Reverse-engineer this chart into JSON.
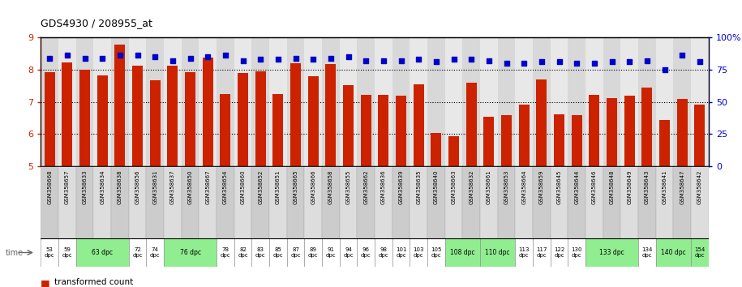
{
  "title": "GDS4930 / 208955_at",
  "samples": [
    "GSM358668",
    "GSM358657",
    "GSM358633",
    "GSM358634",
    "GSM358638",
    "GSM358656",
    "GSM358631",
    "GSM358637",
    "GSM358650",
    "GSM358667",
    "GSM358654",
    "GSM358660",
    "GSM358652",
    "GSM358651",
    "GSM358665",
    "GSM358666",
    "GSM358658",
    "GSM358655",
    "GSM358662",
    "GSM358636",
    "GSM358639",
    "GSM358635",
    "GSM358640",
    "GSM358663",
    "GSM358632",
    "GSM358661",
    "GSM358653",
    "GSM358664",
    "GSM358659",
    "GSM358645",
    "GSM358644",
    "GSM358646",
    "GSM358648",
    "GSM358649",
    "GSM358643",
    "GSM358641",
    "GSM358647",
    "GSM358642"
  ],
  "bar_values": [
    7.92,
    8.22,
    8.0,
    7.82,
    8.78,
    8.12,
    7.66,
    8.12,
    7.92,
    8.38,
    7.25,
    7.9,
    7.95,
    7.25,
    8.2,
    7.8,
    8.18,
    7.52,
    7.22,
    7.22,
    7.2,
    7.55,
    6.05,
    5.93,
    7.6,
    6.55,
    6.58,
    6.92,
    7.7,
    6.62,
    6.58,
    7.22,
    7.12,
    7.2,
    7.45,
    6.45,
    7.08,
    6.92
  ],
  "percentile_values": [
    84,
    86,
    84,
    84,
    86,
    86,
    85,
    82,
    84,
    85,
    86,
    82,
    83,
    83,
    84,
    83,
    84,
    85,
    82,
    82,
    82,
    83,
    81,
    83,
    83,
    82,
    80,
    80,
    81,
    81,
    80,
    80,
    81,
    81,
    82,
    75,
    86,
    81
  ],
  "ylim": [
    5,
    9
  ],
  "yticks": [
    5,
    6,
    7,
    8,
    9
  ],
  "y2lim": [
    0,
    100
  ],
  "y2ticks": [
    0,
    25,
    50,
    75,
    100
  ],
  "bar_color": "#cc2200",
  "dot_color": "#0000cc",
  "grid_color": "#000000",
  "groups": [
    {
      "indices": [
        0
      ],
      "label": "53\ndpc",
      "green": false
    },
    {
      "indices": [
        1
      ],
      "label": "59\ndpc",
      "green": false
    },
    {
      "indices": [
        2,
        3,
        4
      ],
      "label": "63 dpc",
      "green": true
    },
    {
      "indices": [
        5
      ],
      "label": "72\ndpc",
      "green": false
    },
    {
      "indices": [
        6
      ],
      "label": "74\ndpc",
      "green": false
    },
    {
      "indices": [
        7,
        8,
        9
      ],
      "label": "76 dpc",
      "green": true
    },
    {
      "indices": [
        10
      ],
      "label": "78\ndpc",
      "green": false
    },
    {
      "indices": [
        11
      ],
      "label": "82\ndpc",
      "green": false
    },
    {
      "indices": [
        12
      ],
      "label": "83\ndpc",
      "green": false
    },
    {
      "indices": [
        13
      ],
      "label": "85\ndpc",
      "green": false
    },
    {
      "indices": [
        14
      ],
      "label": "87\ndpc",
      "green": false
    },
    {
      "indices": [
        15
      ],
      "label": "89\ndpc",
      "green": false
    },
    {
      "indices": [
        16
      ],
      "label": "91\ndpc",
      "green": false
    },
    {
      "indices": [
        17
      ],
      "label": "94\ndpc",
      "green": false
    },
    {
      "indices": [
        18
      ],
      "label": "96\ndpc",
      "green": false
    },
    {
      "indices": [
        19
      ],
      "label": "98\ndpc",
      "green": false
    },
    {
      "indices": [
        20
      ],
      "label": "101\ndpc",
      "green": false
    },
    {
      "indices": [
        21
      ],
      "label": "103\ndpc",
      "green": false
    },
    {
      "indices": [
        22
      ],
      "label": "105\ndpc",
      "green": false
    },
    {
      "indices": [
        23,
        24
      ],
      "label": "108 dpc",
      "green": true
    },
    {
      "indices": [
        25,
        26
      ],
      "label": "110 dpc",
      "green": true
    },
    {
      "indices": [
        27
      ],
      "label": "113\ndpc",
      "green": false
    },
    {
      "indices": [
        28
      ],
      "label": "117\ndpc",
      "green": false
    },
    {
      "indices": [
        29
      ],
      "label": "122\ndpc",
      "green": false
    },
    {
      "indices": [
        30
      ],
      "label": "130\ndpc",
      "green": false
    },
    {
      "indices": [
        31,
        32,
        33
      ],
      "label": "133 dpc",
      "green": true
    },
    {
      "indices": [
        34
      ],
      "label": "134\ndpc",
      "green": false
    },
    {
      "indices": [
        35,
        36
      ],
      "label": "140 dpc",
      "green": true
    },
    {
      "indices": [
        37
      ],
      "label": "154\ndpc",
      "green": true
    }
  ]
}
